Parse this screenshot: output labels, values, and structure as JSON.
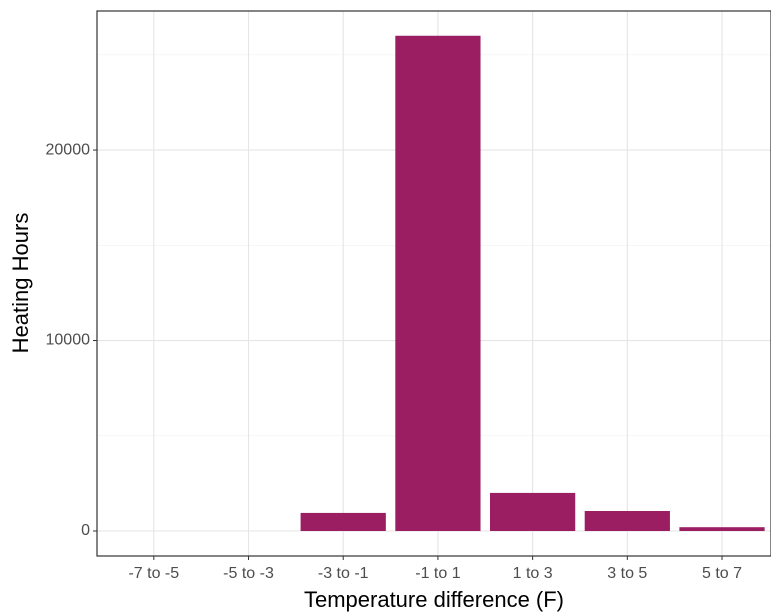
{
  "chart_data": {
    "type": "bar",
    "x_label": "Temperature difference (F)",
    "y_label": "Heating Hours",
    "categories": [
      "-7 to -5",
      "-5 to -3",
      "-3 to -1",
      "-1 to 1",
      "1 to 3",
      "3 to 5",
      "5 to 7"
    ],
    "values": [
      0,
      0,
      950,
      26000,
      2000,
      1050,
      200
    ],
    "color": "#9b1d62",
    "ylim": [
      -1312,
      27300
    ],
    "yticks": [
      0,
      10000,
      20000
    ],
    "yminor": [
      5000,
      15000,
      25000
    ],
    "grid": true
  }
}
